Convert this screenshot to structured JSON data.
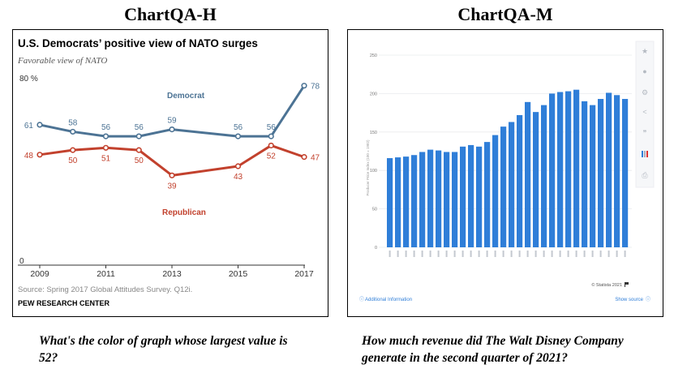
{
  "headings": {
    "left": "ChartQA-H",
    "right": "ChartQA-M"
  },
  "questions": {
    "left": "What's the color of graph whose largest value is 52?",
    "right": "How much revenue did The Walt Disney Company generate in the second quarter of 2021?"
  },
  "colors": {
    "democrat": "#4c7394",
    "republican": "#c2412d",
    "statista_bar": "#2f7ed8",
    "link": "#2f7ed8"
  },
  "chart_data": [
    {
      "type": "line",
      "title": "U.S. Democrats’ positive view of NATO surges",
      "subtitle": "Favorable view of NATO",
      "y_top_label": "80 %",
      "y_zero_label": "0",
      "ylim": [
        0,
        80
      ],
      "x_tick_labels": [
        "2009",
        "2011",
        "2013",
        "2015",
        "2017"
      ],
      "x": [
        2009,
        2010,
        2011,
        2012,
        2013,
        2015,
        2016,
        2017
      ],
      "series": [
        {
          "name": "Democrat",
          "values": [
            61,
            58,
            56,
            56,
            59,
            56,
            56,
            78
          ]
        },
        {
          "name": "Republican",
          "values": [
            48,
            50,
            51,
            50,
            39,
            43,
            52,
            47
          ]
        }
      ],
      "source": "Source: Spring 2017 Global Attitudes Survey. Q12i.",
      "org": "PEW RESEARCH CENTER"
    },
    {
      "type": "bar",
      "ylim": [
        0,
        250
      ],
      "yticks": [
        "0",
        "50",
        "100",
        "150",
        "200",
        "250"
      ],
      "ylabel": "Producer Price Index (100 = 1982)",
      "values": [
        116,
        117,
        118,
        120,
        124,
        127,
        126,
        124,
        124,
        131,
        133,
        131,
        137,
        146,
        157,
        163,
        172,
        189,
        176,
        185,
        200,
        202,
        203,
        205,
        190,
        185,
        193,
        201,
        198,
        193
      ],
      "footer_copyright": "© Statista 2021",
      "additional_info": "Additional Information",
      "show_source": "Show source"
    }
  ]
}
